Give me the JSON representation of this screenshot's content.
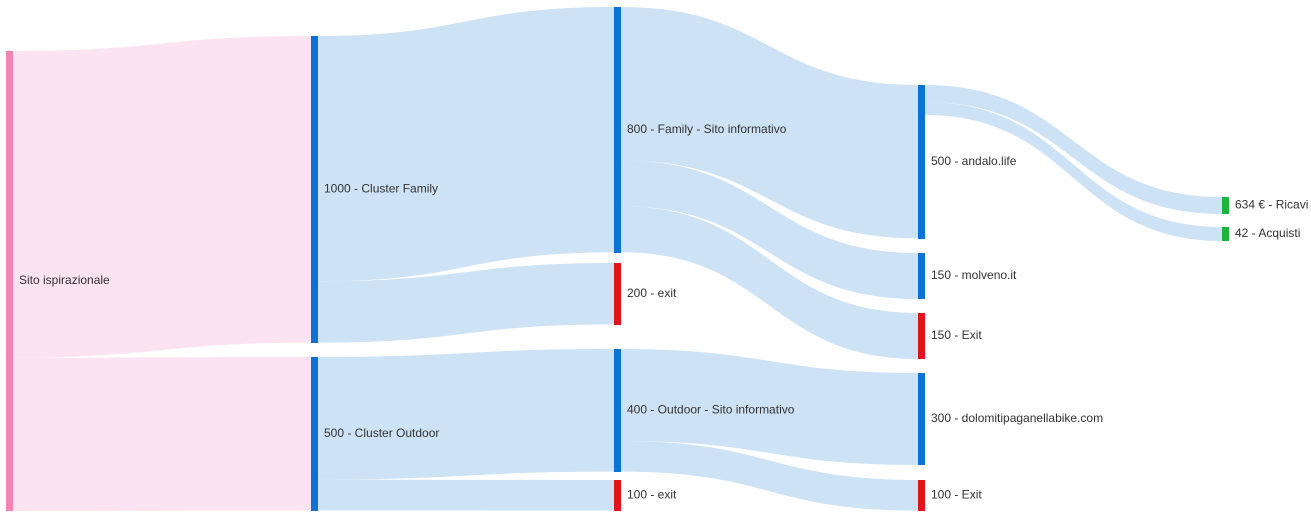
{
  "colors": {
    "source_node": "#ee85b5",
    "cluster_node": "#0b73d6",
    "exit_node": "#e0141e",
    "conversion_node": "#1db43e",
    "source_link": "#fbe3f1",
    "link": "#cde2f5"
  },
  "chart_data": {
    "type": "sankey",
    "nodes": [
      {
        "id": "sito",
        "label": "Sito ispirazionale",
        "value": 1500,
        "column": 0,
        "kind": "source_node"
      },
      {
        "id": "family",
        "label": "1000 - Cluster Family",
        "value": 1000,
        "column": 1,
        "kind": "cluster_node"
      },
      {
        "id": "outdoor",
        "label": "500 - Cluster Outdoor",
        "value": 500,
        "column": 1,
        "kind": "cluster_node"
      },
      {
        "id": "fam_info",
        "label": "800 - Family - Sito informativo",
        "value": 800,
        "column": 2,
        "kind": "cluster_node"
      },
      {
        "id": "exit200",
        "label": "200 - exit",
        "value": 200,
        "column": 2,
        "kind": "exit_node"
      },
      {
        "id": "out_info",
        "label": "400 - Outdoor - Sito informativo",
        "value": 400,
        "column": 2,
        "kind": "cluster_node"
      },
      {
        "id": "exit100a",
        "label": "100 - exit",
        "value": 100,
        "column": 2,
        "kind": "exit_node"
      },
      {
        "id": "andalo",
        "label": "500 - andalo.life",
        "value": 500,
        "column": 3,
        "kind": "cluster_node"
      },
      {
        "id": "molveno",
        "label": "150 - molveno.it",
        "value": 150,
        "column": 3,
        "kind": "cluster_node"
      },
      {
        "id": "exit150",
        "label": "150 - Exit",
        "value": 150,
        "column": 3,
        "kind": "exit_node"
      },
      {
        "id": "dolomiti",
        "label": "300 - dolomitipaganellabike.com",
        "value": 300,
        "column": 3,
        "kind": "cluster_node"
      },
      {
        "id": "exit100b",
        "label": "100 - Exit",
        "value": 100,
        "column": 3,
        "kind": "exit_node"
      },
      {
        "id": "ricavi",
        "label": "634 € - Ricavi",
        "value": 634,
        "column": 4,
        "kind": "conversion_node"
      },
      {
        "id": "acquisti",
        "label": "42 - Acquisti",
        "value": 42,
        "column": 4,
        "kind": "conversion_node"
      }
    ],
    "links": [
      {
        "source": "sito",
        "target": "family",
        "value": 1000
      },
      {
        "source": "sito",
        "target": "outdoor",
        "value": 500
      },
      {
        "source": "family",
        "target": "fam_info",
        "value": 800
      },
      {
        "source": "family",
        "target": "exit200",
        "value": 200
      },
      {
        "source": "outdoor",
        "target": "out_info",
        "value": 400
      },
      {
        "source": "outdoor",
        "target": "exit100a",
        "value": 100
      },
      {
        "source": "fam_info",
        "target": "andalo",
        "value": 500
      },
      {
        "source": "fam_info",
        "target": "molveno",
        "value": 150
      },
      {
        "source": "fam_info",
        "target": "exit150",
        "value": 150
      },
      {
        "source": "out_info",
        "target": "dolomiti",
        "value": 300
      },
      {
        "source": "out_info",
        "target": "exit100b",
        "value": 100
      },
      {
        "source": "andalo",
        "target": "ricavi",
        "value": 634
      },
      {
        "source": "andalo",
        "target": "acquisti",
        "value": 42
      }
    ]
  }
}
